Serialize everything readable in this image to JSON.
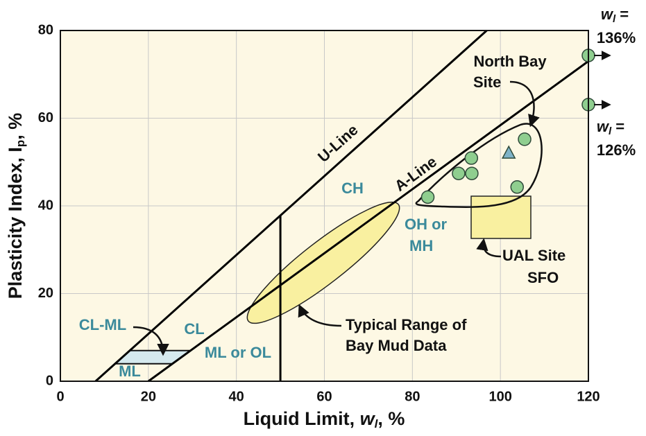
{
  "chart_data": {
    "type": "scatter",
    "x_label": {
      "text": "Liquid Limit, ",
      "var": "w",
      "sub": "l",
      "end": ", %"
    },
    "y_label": {
      "text": "Plasticity Index, I",
      "sub": "p",
      "end": ", %"
    },
    "xlim": [
      0,
      120
    ],
    "ylim": [
      0,
      80
    ],
    "xticks": [
      0,
      20,
      40,
      60,
      80,
      100,
      120
    ],
    "yticks": [
      0,
      20,
      40,
      60,
      80
    ],
    "grid": true,
    "series": [
      {
        "name": "U-Line",
        "style": "line",
        "color": "#000000",
        "x": [
          8,
          96.9
        ],
        "values": [
          0,
          80
        ]
      },
      {
        "name": "A-Line",
        "style": "line",
        "color": "#000000",
        "x": [
          20,
          120
        ],
        "values": [
          0,
          73
        ]
      },
      {
        "style": "line",
        "color": "#000000",
        "x": [
          50,
          50
        ],
        "values": [
          0,
          37.8
        ]
      },
      {
        "style": "circle",
        "color": "#8fce8f",
        "x": [
          83.5,
          90.5,
          93.5,
          93.4,
          105.5,
          103.8,
          120,
          120
        ],
        "values": [
          42,
          47.4,
          47.4,
          50.9,
          55.2,
          44.3,
          74.3,
          63.1
        ]
      },
      {
        "style": "triangle",
        "color": "#7fb3c8",
        "x": [
          101.9
        ],
        "values": [
          52
        ]
      }
    ],
    "cl_ml_band": [
      4,
      7
    ],
    "labels": {
      "ch": "CH",
      "cl": "CL",
      "oh_mh": [
        "OH or",
        "MH"
      ],
      "ml_ol": "ML or OL",
      "cl_ml": "CL-ML",
      "ml": "ML",
      "north_bay": [
        "North Bay",
        "Site"
      ],
      "ual": [
        "UAL Site",
        "SFO"
      ],
      "bay_mud": [
        "Typical Range of",
        "Bay Mud Data"
      ],
      "w_high": {
        "var": "w",
        "sub": "l",
        "eq": " =",
        "value": "136%"
      },
      "w_low": {
        "var": "w",
        "sub": "l",
        "eq": " =",
        "value": "126%"
      }
    }
  }
}
